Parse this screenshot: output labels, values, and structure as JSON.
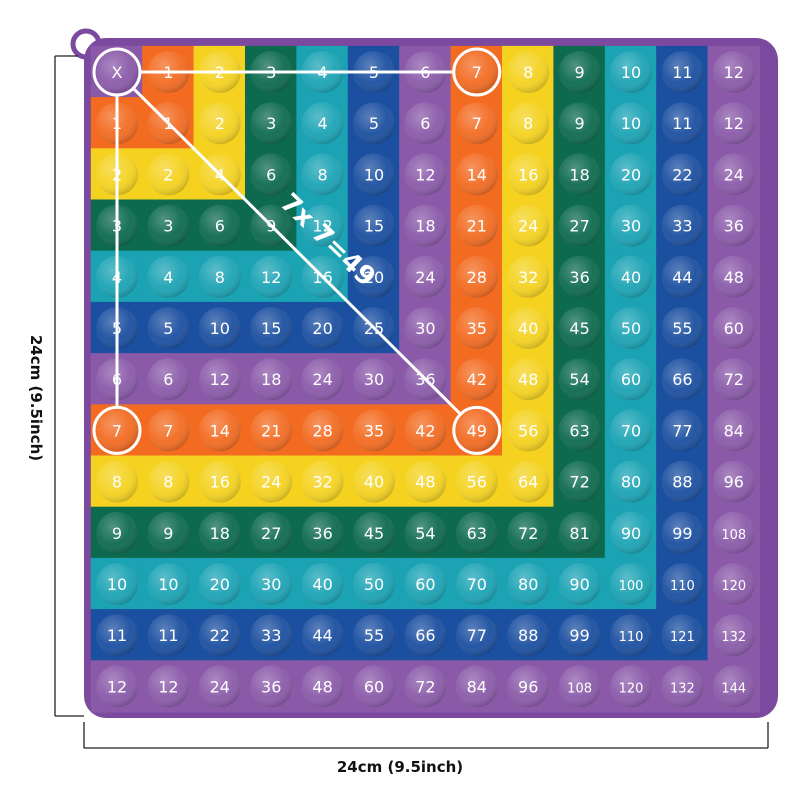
{
  "product": {
    "name": "12x12 multiplication pop-it fidget board",
    "corner_symbol": "X",
    "header_numbers": [
      1,
      2,
      3,
      4,
      5,
      6,
      7,
      8,
      9,
      10,
      11,
      12
    ],
    "row_labels": [
      1,
      2,
      3,
      4,
      5,
      6,
      7,
      8,
      9,
      10,
      11,
      12
    ]
  },
  "annotation": {
    "equation": "7x 7=49",
    "highlight_factor": 7,
    "highlight_product": 49
  },
  "dimensions": {
    "width_label": "24cm (9.5inch)",
    "height_label": "24cm (9.5inch)"
  },
  "colors": {
    "frame": "#7b4a9e",
    "purple": "#8a5aa9",
    "orange": "#f26b21",
    "yellow": "#f4d21f",
    "dark_green": "#0d6a4f",
    "teal": "#1ba3b4",
    "blue": "#1b4fa0",
    "highlight_ring": "#ffffff",
    "number_text": "#ffffff"
  },
  "band_colors": [
    "purple",
    "orange",
    "yellow",
    "dark_green",
    "teal",
    "blue",
    "purple",
    "orange",
    "yellow",
    "dark_green",
    "teal",
    "blue",
    "purple"
  ]
}
